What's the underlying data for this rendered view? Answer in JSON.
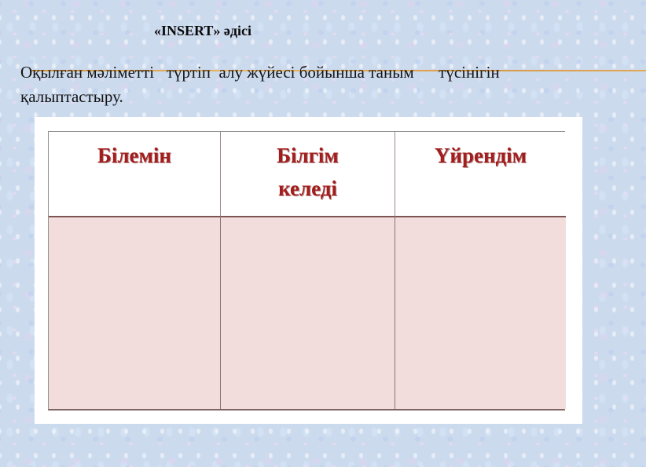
{
  "slide": {
    "title": "«INSERT» әдісі",
    "body": {
      "line1": "Оқылған мәліметті   түртіп  алу жүйесі бойынша таным      түсінігін",
      "line2": "қалыптастыру."
    },
    "table": {
      "headers": [
        "Білемін",
        "Білгім\nкеледі",
        "Үйрендім"
      ],
      "rows": [
        [
          "",
          "",
          ""
        ]
      ]
    },
    "colors": {
      "background_base": "#ccdaee",
      "accent_line": "#d99a45",
      "header_text": "#a31d1d",
      "body_row_fill": "#f2dddc",
      "panel_fill": "#ffffff",
      "table_border": "#8f8f8f"
    }
  }
}
